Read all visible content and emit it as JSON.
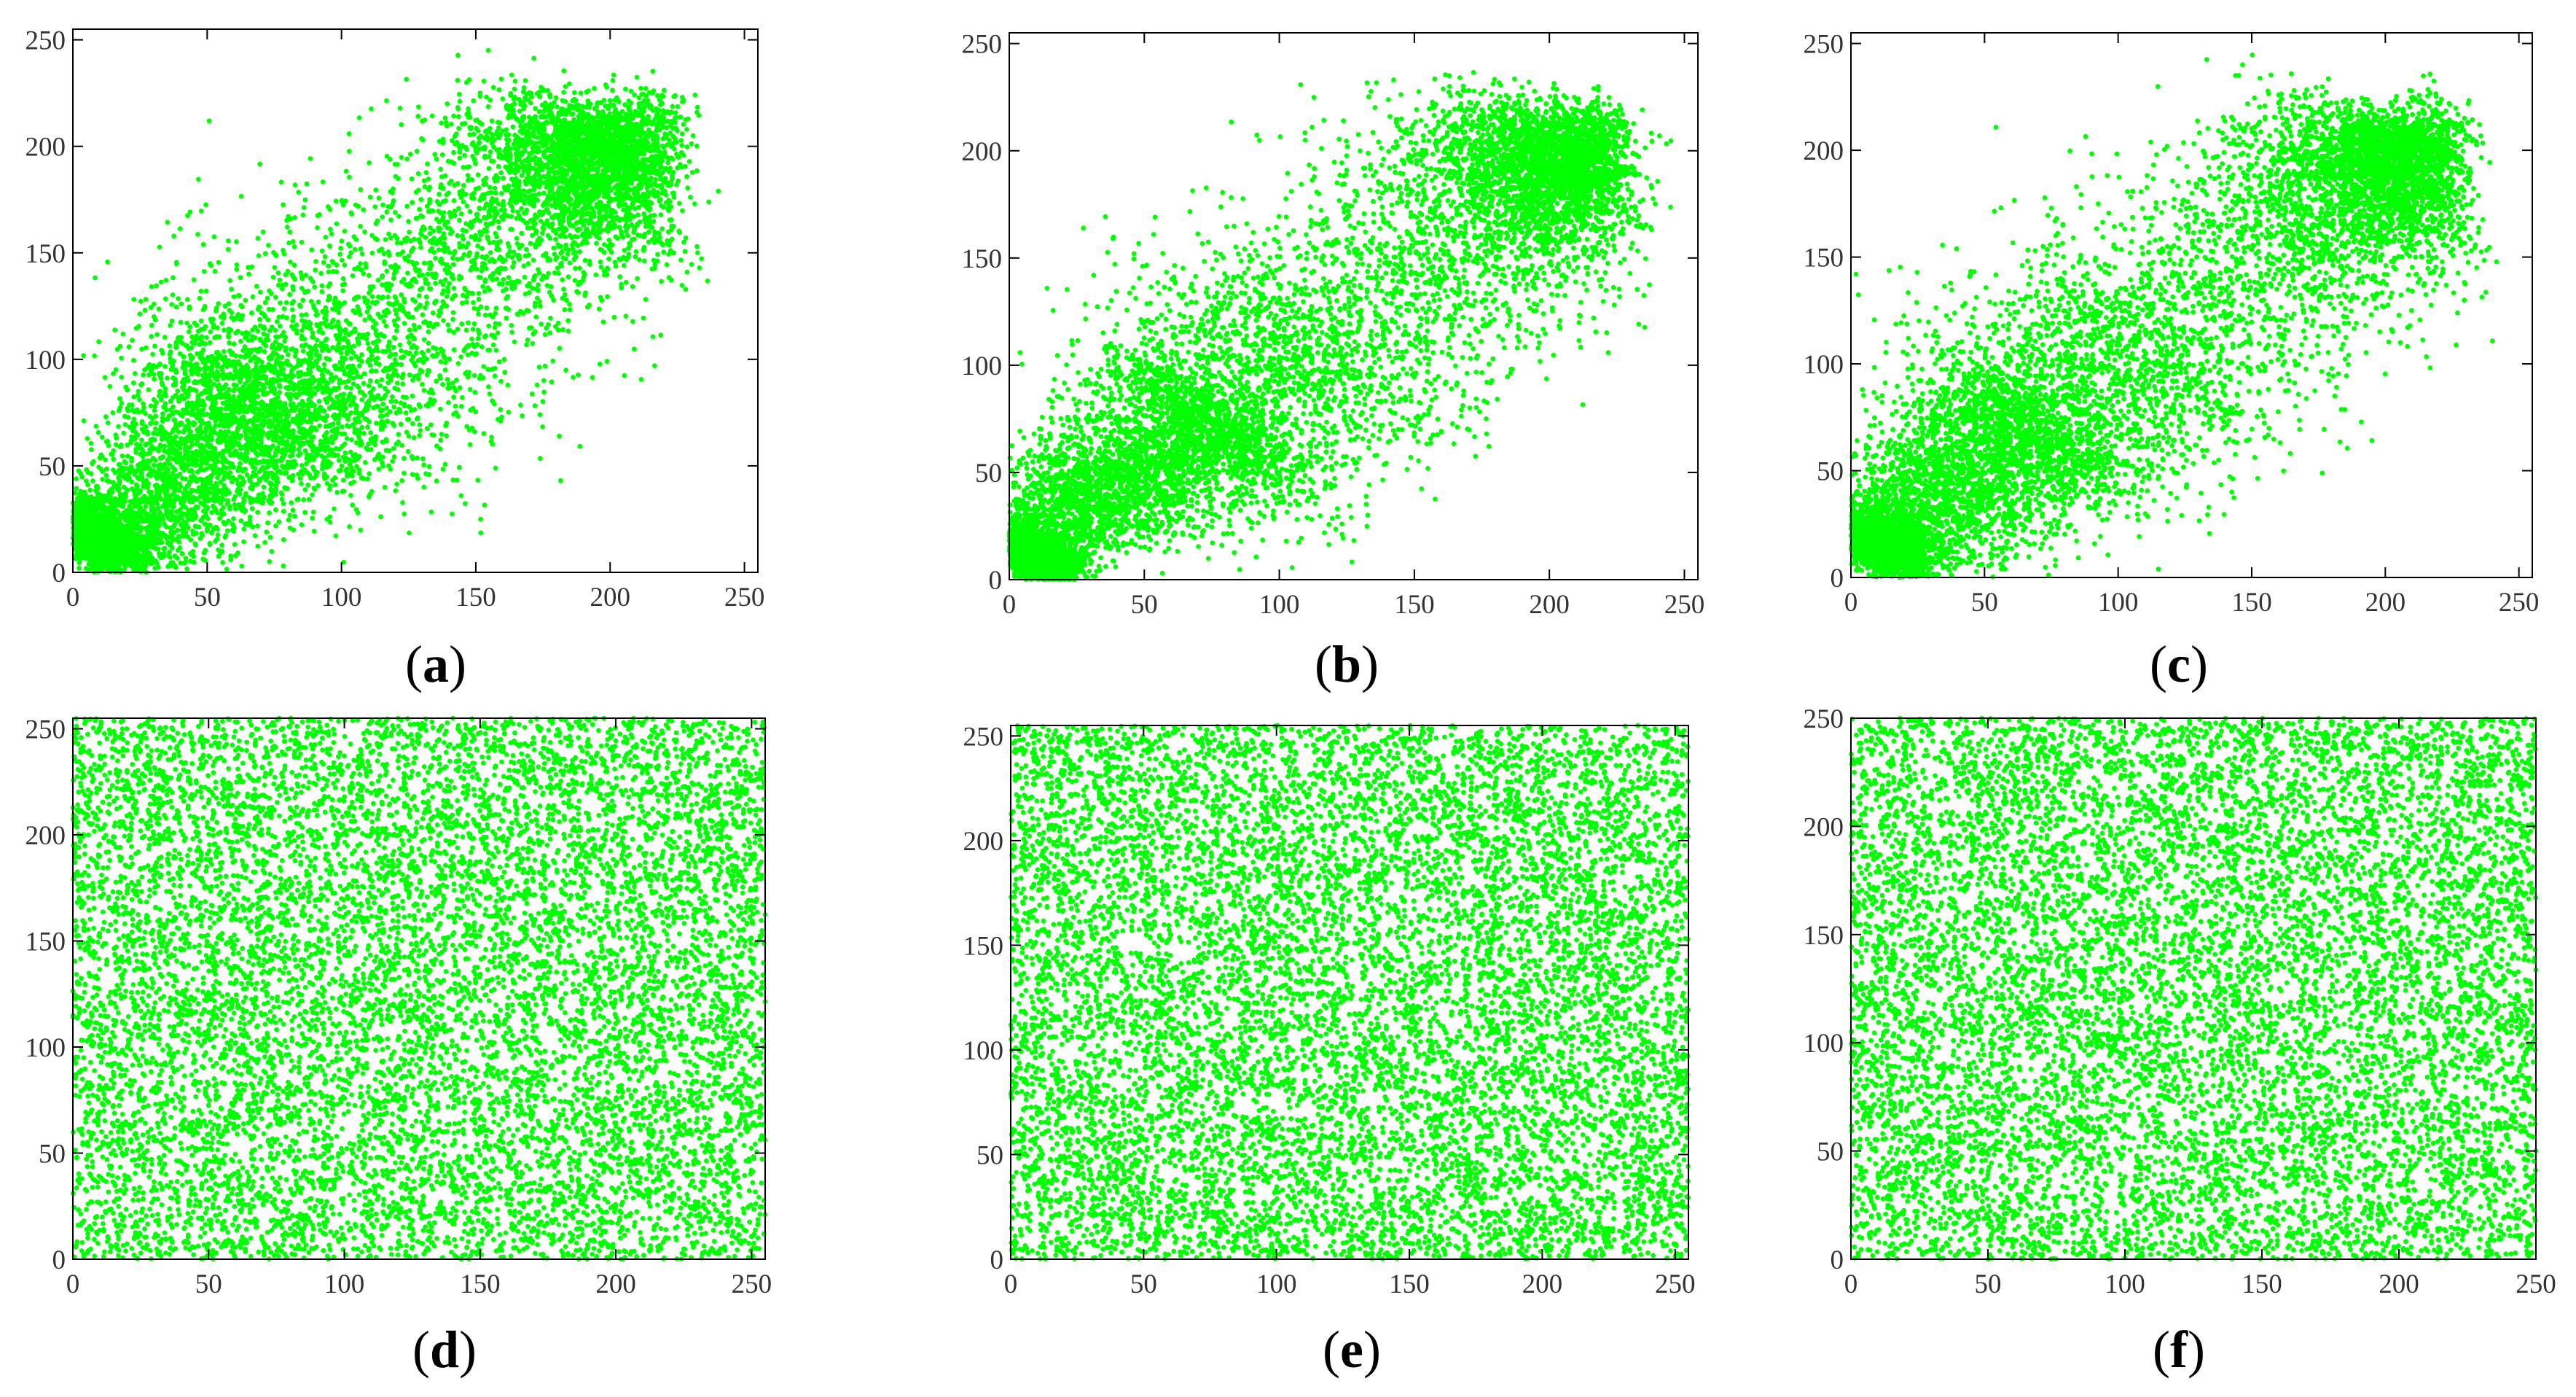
{
  "chart_data": [
    {
      "id": "a",
      "type": "scatter",
      "caption": "a",
      "distribution": "correlated",
      "xlim": [
        0,
        255
      ],
      "ylim": [
        0,
        255
      ],
      "point_color": "#00ff00",
      "n_points": 10000,
      "xticks": [
        "0",
        "50",
        "100",
        "150",
        "200",
        "250"
      ],
      "yticks": [
        "0",
        "50",
        "100",
        "150",
        "200",
        "250"
      ],
      "x": [
        8,
        22,
        45,
        62,
        75,
        90,
        110,
        130,
        150,
        175,
        190,
        200,
        210,
        220
      ],
      "y": [
        16,
        20,
        48,
        70,
        80,
        95,
        110,
        130,
        150,
        175,
        190,
        200,
        205,
        218
      ]
    },
    {
      "id": "b",
      "type": "scatter",
      "caption": "b",
      "distribution": "correlated",
      "xlim": [
        0,
        255
      ],
      "ylim": [
        0,
        255
      ],
      "point_color": "#00ff00",
      "n_points": 10000,
      "xticks": [
        "0",
        "50",
        "100",
        "150",
        "200",
        "250"
      ],
      "yticks": [
        "0",
        "50",
        "100",
        "150",
        "200",
        "250"
      ],
      "x": [
        10,
        25,
        50,
        70,
        80,
        100,
        120,
        140,
        160,
        180,
        195,
        205,
        215,
        222
      ],
      "y": [
        10,
        35,
        50,
        70,
        75,
        100,
        115,
        135,
        150,
        175,
        190,
        200,
        205,
        215
      ]
    },
    {
      "id": "c",
      "type": "scatter",
      "caption": "c",
      "distribution": "correlated",
      "xlim": [
        0,
        255
      ],
      "ylim": [
        0,
        255
      ],
      "point_color": "#00ff00",
      "n_points": 10000,
      "xticks": [
        "0",
        "50",
        "100",
        "150",
        "200",
        "250"
      ],
      "yticks": [
        "0",
        "50",
        "100",
        "150",
        "200",
        "250"
      ],
      "x": [
        10,
        20,
        40,
        60,
        75,
        100,
        120,
        140,
        160,
        180,
        195,
        205,
        215,
        222
      ],
      "y": [
        15,
        25,
        45,
        65,
        75,
        100,
        115,
        135,
        155,
        175,
        190,
        198,
        205,
        215
      ]
    },
    {
      "id": "d",
      "type": "scatter",
      "caption": "d",
      "distribution": "uniform",
      "xlim": [
        0,
        255
      ],
      "ylim": [
        0,
        255
      ],
      "point_color": "#00ff00",
      "n_points": 10000,
      "xticks": [
        "0",
        "50",
        "100",
        "150",
        "200",
        "250"
      ],
      "yticks": [
        "0",
        "50",
        "100",
        "150",
        "200",
        "250"
      ]
    },
    {
      "id": "e",
      "type": "scatter",
      "caption": "e",
      "distribution": "uniform",
      "xlim": [
        0,
        255
      ],
      "ylim": [
        0,
        255
      ],
      "point_color": "#00ff00",
      "n_points": 10000,
      "xticks": [
        "0",
        "50",
        "100",
        "150",
        "200",
        "250"
      ],
      "yticks": [
        "0",
        "50",
        "100",
        "150",
        "200",
        "250"
      ]
    },
    {
      "id": "f",
      "type": "scatter",
      "caption": "f",
      "distribution": "uniform",
      "xlim": [
        0,
        250
      ],
      "ylim": [
        0,
        250
      ],
      "point_color": "#00ff00",
      "n_points": 10000,
      "xticks": [
        "0",
        "50",
        "100",
        "150",
        "200",
        "250"
      ],
      "yticks": [
        "0",
        "50",
        "100",
        "150",
        "200",
        "250"
      ]
    }
  ]
}
